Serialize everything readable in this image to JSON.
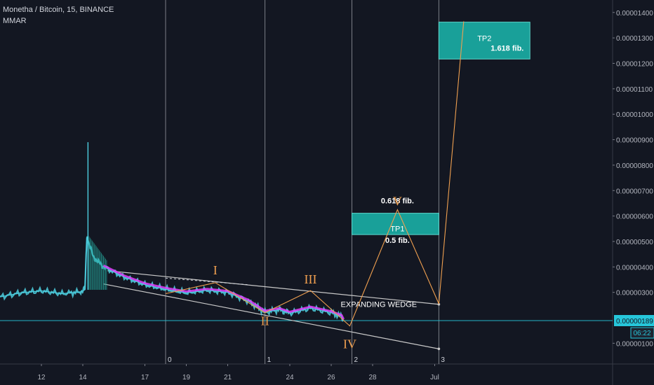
{
  "header": {
    "symbol": "Monetha / Bitcoin, 15, BINANCE",
    "indicator": "MMAR"
  },
  "chart_data": {
    "type": "line",
    "title": "Monetha / Bitcoin, 15, BINANCE",
    "xlabel": "",
    "ylabel": "",
    "x_ticks": [
      "12",
      "14",
      "17",
      "19",
      "21",
      "24",
      "26",
      "28",
      "Jul"
    ],
    "y_ticks": [
      "0.00001400",
      "0.00001300",
      "0.00001200",
      "0.00001100",
      "0.00001000",
      "0.00000900",
      "0.00000800",
      "0.00000700",
      "0.00000600",
      "0.00000500",
      "0.00000400",
      "0.00000300",
      "0.00000100"
    ],
    "ylim": [
      6e-07,
      1.433e-05
    ],
    "grid": false,
    "current_price": "0.00000189",
    "countdown": "06:22",
    "price_series": [
      {
        "day": 10.0,
        "price": 2.82e-06
      },
      {
        "day": 11.0,
        "price": 2.98e-06
      },
      {
        "day": 12.0,
        "price": 3.06e-06
      },
      {
        "day": 13.0,
        "price": 2.95e-06
      },
      {
        "day": 13.9,
        "price": 3.02e-06
      },
      {
        "day": 14.1,
        "price": 3.1e-06
      },
      {
        "day": 14.2,
        "price": 5.2e-06
      },
      {
        "day": 14.5,
        "price": 4.4e-06
      },
      {
        "day": 15.0,
        "price": 4e-06
      },
      {
        "day": 16.0,
        "price": 3.6e-06
      },
      {
        "day": 17.0,
        "price": 3.3e-06
      },
      {
        "day": 18.0,
        "price": 3.12e-06
      },
      {
        "day": 19.0,
        "price": 2.98e-06
      },
      {
        "day": 20.0,
        "price": 3.08e-06
      },
      {
        "day": 21.0,
        "price": 3e-06
      },
      {
        "day": 22.0,
        "price": 2.65e-06
      },
      {
        "day": 22.8,
        "price": 2.22e-06
      },
      {
        "day": 23.5,
        "price": 2.32e-06
      },
      {
        "day": 24.0,
        "price": 2.18e-06
      },
      {
        "day": 25.0,
        "price": 2.38e-06
      },
      {
        "day": 26.0,
        "price": 2.2e-06
      },
      {
        "day": 26.5,
        "price": 2.05e-06
      },
      {
        "day": 26.6,
        "price": 1.89e-06
      }
    ],
    "spike": {
      "day": 14.25,
      "high": 8.9e-06
    },
    "wedge": {
      "upper": [
        {
          "day": 15.2,
          "price": 3.85e-06
        },
        {
          "day": 31.2,
          "price": 2.53e-06
        }
      ],
      "lower": [
        {
          "day": 15.0,
          "price": 3.33e-06
        },
        {
          "day": 31.2,
          "price": 7.8e-07
        }
      ]
    },
    "wave_path": [
      {
        "day": 18.0,
        "price": 2.95e-06,
        "label": "0"
      },
      {
        "day": 20.4,
        "price": 3.38e-06,
        "label": "I"
      },
      {
        "day": 22.8,
        "price": 2.2e-06,
        "label": "II"
      },
      {
        "day": 25.0,
        "price": 3.07e-06,
        "label": "III"
      },
      {
        "day": 26.9,
        "price": 1.68e-06,
        "label": "IV"
      },
      {
        "day": 29.2,
        "price": 6.25e-06,
        "label": "V"
      },
      {
        "day": 31.2,
        "price": 2.55e-06,
        "label": ""
      },
      {
        "day": 32.4,
        "price": 1.365e-05,
        "label": ""
      }
    ],
    "time_markers": [
      {
        "day": 18.0,
        "label": "0"
      },
      {
        "day": 22.8,
        "label": "1"
      },
      {
        "day": 27.0,
        "label": "2"
      },
      {
        "day": 31.2,
        "label": "3"
      }
    ],
    "dashed_resistance": [
      {
        "day": 18.0,
        "price": 3.56e-06
      },
      {
        "day": 22.0,
        "price": 3.3e-06
      }
    ],
    "targets": [
      {
        "name": "TP1",
        "fib_top": "0.618 fib.",
        "fib_bottom": "0.5 fib.",
        "price_low": 5.27e-06,
        "price_high": 6.11e-06,
        "day_start": 27.0,
        "day_end": 31.2
      },
      {
        "name": "TP2",
        "fib_top": "1.618 fib.",
        "fib_bottom": "",
        "price_low": 1.217e-05,
        "price_high": 1.362e-05,
        "day_start": 31.2,
        "day_end": 35.6
      }
    ],
    "annotations": [
      "EXPANDING WEDGE"
    ],
    "colors": {
      "background": "#131722",
      "price_line": "#4dd0e1",
      "ma_line": "#e040fb",
      "wave": "#f0a050",
      "target_fill": "#1aa8a0",
      "wedge": "#c8c8c8",
      "current_price_line": "#26c6da"
    }
  }
}
